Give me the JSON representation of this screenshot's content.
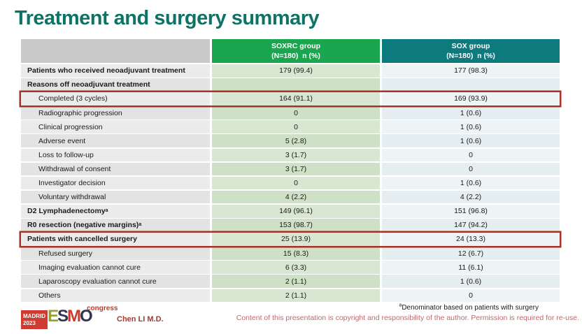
{
  "slide": {
    "title": "Treatment and surgery summary"
  },
  "table": {
    "header": {
      "soxrc_name": "SOXRC group",
      "soxrc_sub": "(N=180)  n (%)",
      "sox_name": "SOX group",
      "sox_sub": "(N=180)  n (%)"
    },
    "highlight_color": "#a93226",
    "rows": [
      {
        "label": "Patients who received neoadjuvant treatment",
        "sup": "",
        "soxrc": "179 (99.4)",
        "sox": "177 (98.3)",
        "bold": true,
        "indent": false,
        "boxed": false
      },
      {
        "label": "Reasons off neoadjuvant treatment",
        "sup": "",
        "soxrc": "",
        "sox": "",
        "bold": true,
        "indent": false,
        "boxed": false
      },
      {
        "label": "Completed (3 cycles)",
        "sup": "",
        "soxrc": "164 (91.1)",
        "sox": "169 (93.9)",
        "bold": false,
        "indent": true,
        "boxed": true
      },
      {
        "label": "Radiographic progression",
        "sup": "",
        "soxrc": "0",
        "sox": "1 (0.6)",
        "bold": false,
        "indent": true,
        "boxed": false
      },
      {
        "label": "Clinical progression",
        "sup": "",
        "soxrc": "0",
        "sox": "1 (0.6)",
        "bold": false,
        "indent": true,
        "boxed": false
      },
      {
        "label": "Adverse event",
        "sup": "",
        "soxrc": "5 (2.8)",
        "sox": "1 (0.6)",
        "bold": false,
        "indent": true,
        "boxed": false
      },
      {
        "label": "Loss to follow-up",
        "sup": "",
        "soxrc": "3 (1.7)",
        "sox": "0",
        "bold": false,
        "indent": true,
        "boxed": false
      },
      {
        "label": "Withdrawal of consent",
        "sup": "",
        "soxrc": "3 (1.7)",
        "sox": "0",
        "bold": false,
        "indent": true,
        "boxed": false
      },
      {
        "label": "Investigator decision",
        "sup": "",
        "soxrc": "0",
        "sox": "1 (0.6)",
        "bold": false,
        "indent": true,
        "boxed": false
      },
      {
        "label": "Voluntary withdrawal",
        "sup": "",
        "soxrc": "4 (2.2)",
        "sox": "4 (2.2)",
        "bold": false,
        "indent": true,
        "boxed": false
      },
      {
        "label": "D2 Lymphadenectomy",
        "sup": "a",
        "soxrc": "149 (96.1)",
        "sox": "151 (96.8)",
        "bold": true,
        "indent": false,
        "boxed": false
      },
      {
        "label": "R0 resection (negative margins)",
        "sup": "a",
        "soxrc": "153 (98.7)",
        "sox": "147 (94.2)",
        "bold": true,
        "indent": false,
        "boxed": false
      },
      {
        "label": "Patients with cancelled surgery",
        "sup": "",
        "soxrc": "25 (13.9)",
        "sox": "24 (13.3)",
        "bold": true,
        "indent": false,
        "boxed": true
      },
      {
        "label": "Refused surgery",
        "sup": "",
        "soxrc": "15 (8.3)",
        "sox": "12 (6.7)",
        "bold": false,
        "indent": true,
        "boxed": false
      },
      {
        "label": "Imaging evaluation cannot cure",
        "sup": "",
        "soxrc": "6 (3.3)",
        "sox": "11 (6.1)",
        "bold": false,
        "indent": true,
        "boxed": false
      },
      {
        "label": "Laparoscopy evaluation cannot cure",
        "sup": "",
        "soxrc": "2 (1.1)",
        "sox": "1 (0.6)",
        "bold": false,
        "indent": true,
        "boxed": false
      },
      {
        "label": "Others",
        "sup": "",
        "soxrc": "2 (1.1)",
        "sox": "0",
        "bold": false,
        "indent": true,
        "boxed": false
      }
    ]
  },
  "footer": {
    "footnote_sup": "a",
    "footnote_text": "Denominator based on patients with surgery",
    "presenter": "Chen LI M.D.",
    "copyright": "Content of this presentation is copyright and responsibility of the author. Permission is required for re-use.",
    "logo": {
      "city": "MADRID",
      "year": "2023",
      "event": "congress",
      "letters": [
        {
          "ch": "E",
          "color": "#98a03a"
        },
        {
          "ch": "S",
          "color": "#31344f"
        },
        {
          "ch": "M",
          "color": "#cc3a2e"
        },
        {
          "ch": "O",
          "color": "#31344f"
        }
      ]
    }
  },
  "colors": {
    "title": "#0e7265",
    "soxrc_header": "#1aa64e",
    "sox_header": "#0d7a7e",
    "label_header": "#c9c9c9",
    "highlight_box": "#a93226",
    "copyright_text": "#c4676c"
  }
}
